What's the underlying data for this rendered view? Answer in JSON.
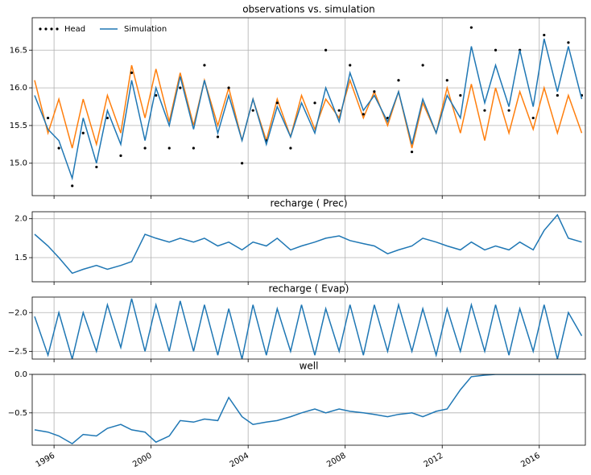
{
  "chart_data": [
    {
      "type": "line",
      "title": "observations vs. simulation",
      "legend": "upper left",
      "grid": true,
      "x": [
        1995.2,
        1995.75,
        1996.2,
        1996.75,
        1997.2,
        1997.75,
        1998.2,
        1998.75,
        1999.2,
        1999.75,
        2000.2,
        2000.75,
        2001.2,
        2001.75,
        2002.2,
        2002.75,
        2003.2,
        2003.75,
        2004.2,
        2004.75,
        2005.2,
        2005.75,
        2006.2,
        2006.75,
        2007.2,
        2007.75,
        2008.2,
        2008.75,
        2009.2,
        2009.75,
        2010.2,
        2010.75,
        2011.2,
        2011.75,
        2012.2,
        2012.75,
        2013.2,
        2013.75,
        2014.2,
        2014.75,
        2015.2,
        2015.75,
        2016.2,
        2016.75,
        2017.2,
        2017.75
      ],
      "series": [
        {
          "color": "#ff7f0e",
          "style": "line",
          "values": [
            16.1,
            15.4,
            15.85,
            15.2,
            15.85,
            15.25,
            15.9,
            15.4,
            16.3,
            15.6,
            16.25,
            15.55,
            16.2,
            15.5,
            16.1,
            15.5,
            16.0,
            15.3,
            15.85,
            15.3,
            15.85,
            15.35,
            15.9,
            15.45,
            15.85,
            15.6,
            16.1,
            15.6,
            15.95,
            15.5,
            15.95,
            15.2,
            15.8,
            15.4,
            16.0,
            15.4,
            16.05,
            15.3,
            16.0,
            15.4,
            15.95,
            15.45,
            16.0,
            15.4,
            15.9,
            15.4
          ]
        },
        {
          "name": "Head",
          "color": "#000000",
          "style": "markers",
          "values": [
            null,
            15.6,
            15.2,
            14.7,
            15.4,
            14.95,
            15.6,
            15.1,
            16.2,
            15.2,
            15.9,
            15.2,
            16.0,
            15.2,
            16.3,
            15.35,
            16.0,
            15.0,
            15.7,
            15.3,
            15.8,
            15.2,
            null,
            15.8,
            16.5,
            15.7,
            16.3,
            15.65,
            15.95,
            15.6,
            16.1,
            15.15,
            16.3,
            null,
            16.1,
            15.9,
            16.8,
            15.7,
            16.5,
            15.7,
            16.5,
            15.6,
            16.7,
            15.9,
            16.6,
            15.9
          ]
        },
        {
          "name": "Simulation",
          "color": "#1f77b4",
          "style": "line",
          "values": [
            15.9,
            15.45,
            15.3,
            14.8,
            15.6,
            15.0,
            15.7,
            15.25,
            16.1,
            15.3,
            16.0,
            15.5,
            16.15,
            15.45,
            16.1,
            15.4,
            15.9,
            15.3,
            15.85,
            15.25,
            15.75,
            15.35,
            15.8,
            15.4,
            16.0,
            15.55,
            16.2,
            15.7,
            15.9,
            15.55,
            15.95,
            15.25,
            15.85,
            15.4,
            15.9,
            15.6,
            16.55,
            15.8,
            16.3,
            15.75,
            16.5,
            15.75,
            16.65,
            15.95,
            16.55,
            15.85
          ]
        }
      ],
      "xlim": [
        1995.1,
        2017.9
      ],
      "xticks": [
        1996,
        2000,
        2004,
        2008,
        2012,
        2016
      ],
      "ylim": [
        14.57,
        16.93
      ],
      "yticks": [
        {
          "value": 15,
          "label": "15.0"
        },
        {
          "value": 15.5,
          "label": "15.5"
        },
        {
          "value": 16,
          "label": "16.0"
        },
        {
          "value": 16.5,
          "label": "16.5"
        }
      ]
    },
    {
      "type": "line",
      "title": "recharge ( Prec)",
      "grid": true,
      "x": [
        1995.2,
        1995.75,
        1996.2,
        1996.75,
        1997.2,
        1997.75,
        1998.2,
        1998.75,
        1999.2,
        1999.75,
        2000.2,
        2000.75,
        2001.2,
        2001.75,
        2002.2,
        2002.75,
        2003.2,
        2003.75,
        2004.2,
        2004.75,
        2005.2,
        2005.75,
        2006.2,
        2006.75,
        2007.2,
        2007.75,
        2008.2,
        2008.75,
        2009.2,
        2009.75,
        2010.2,
        2010.75,
        2011.2,
        2011.75,
        2012.2,
        2012.75,
        2013.2,
        2013.75,
        2014.2,
        2014.75,
        2015.2,
        2015.75,
        2016.2,
        2016.75,
        2017.2,
        2017.75
      ],
      "series": [
        {
          "color": "#1f77b4",
          "style": "line",
          "values": [
            1.8,
            1.65,
            1.5,
            1.3,
            1.35,
            1.4,
            1.35,
            1.4,
            1.45,
            1.8,
            1.75,
            1.7,
            1.75,
            1.7,
            1.75,
            1.65,
            1.7,
            1.6,
            1.7,
            1.65,
            1.75,
            1.6,
            1.65,
            1.7,
            1.75,
            1.78,
            1.72,
            1.68,
            1.65,
            1.55,
            1.6,
            1.65,
            1.75,
            1.7,
            1.65,
            1.6,
            1.7,
            1.6,
            1.65,
            1.6,
            1.7,
            1.6,
            1.85,
            2.05,
            1.75,
            1.7
          ]
        }
      ],
      "xlim": [
        1995.1,
        2017.9
      ],
      "xticks": [
        1996,
        2000,
        2004,
        2008,
        2012,
        2016
      ],
      "ylim": [
        1.19,
        2.09
      ],
      "yticks": [
        {
          "value": 1.5,
          "label": "1.5"
        },
        {
          "value": 2,
          "label": "2.0"
        }
      ]
    },
    {
      "type": "line",
      "title": "recharge ( Evap)",
      "grid": true,
      "x": [
        1995.2,
        1995.75,
        1996.2,
        1996.75,
        1997.2,
        1997.75,
        1998.2,
        1998.75,
        1999.2,
        1999.75,
        2000.2,
        2000.75,
        2001.2,
        2001.75,
        2002.2,
        2002.75,
        2003.2,
        2003.75,
        2004.2,
        2004.75,
        2005.2,
        2005.75,
        2006.2,
        2006.75,
        2007.2,
        2007.75,
        2008.2,
        2008.75,
        2009.2,
        2009.75,
        2010.2,
        2010.75,
        2011.2,
        2011.75,
        2012.2,
        2012.75,
        2013.2,
        2013.75,
        2014.2,
        2014.75,
        2015.2,
        2015.75,
        2016.2,
        2016.75,
        2017.2,
        2017.75
      ],
      "series": [
        {
          "color": "#1f77b4",
          "style": "line",
          "values": [
            -2.05,
            -2.55,
            -2.0,
            -2.6,
            -2.0,
            -2.5,
            -1.9,
            -2.45,
            -1.82,
            -2.5,
            -1.9,
            -2.5,
            -1.85,
            -2.5,
            -1.9,
            -2.55,
            -1.95,
            -2.6,
            -1.9,
            -2.55,
            -1.95,
            -2.5,
            -1.9,
            -2.55,
            -1.95,
            -2.5,
            -1.9,
            -2.55,
            -1.9,
            -2.5,
            -1.9,
            -2.5,
            -1.95,
            -2.55,
            -1.95,
            -2.5,
            -1.9,
            -2.5,
            -1.9,
            -2.55,
            -1.95,
            -2.5,
            -1.9,
            -2.6,
            -2.0,
            -2.3
          ]
        }
      ],
      "xlim": [
        1995.1,
        2017.9
      ],
      "xticks": [
        1996,
        2000,
        2004,
        2008,
        2012,
        2016
      ],
      "ylim": [
        -2.6,
        -1.8
      ],
      "yticks": [
        {
          "value": -2.5,
          "label": "−2.5"
        },
        {
          "value": -2,
          "label": "−2.0"
        }
      ]
    },
    {
      "type": "line",
      "title": "well",
      "grid": true,
      "x": [
        1995.2,
        1995.75,
        1996.2,
        1996.75,
        1997.2,
        1997.75,
        1998.2,
        1998.75,
        1999.2,
        1999.75,
        2000.2,
        2000.75,
        2001.2,
        2001.75,
        2002.2,
        2002.75,
        2003.2,
        2003.75,
        2004.2,
        2004.75,
        2005.2,
        2005.75,
        2006.2,
        2006.75,
        2007.2,
        2007.75,
        2008.2,
        2008.75,
        2009.2,
        2009.75,
        2010.2,
        2010.75,
        2011.2,
        2011.75,
        2012.2,
        2012.75,
        2013.2,
        2013.75,
        2014.2,
        2014.75,
        2015.2,
        2015.75,
        2016.2,
        2016.75,
        2017.2,
        2017.75
      ],
      "series": [
        {
          "color": "#1f77b4",
          "style": "line",
          "values": [
            -0.72,
            -0.75,
            -0.8,
            -0.9,
            -0.78,
            -0.8,
            -0.7,
            -0.65,
            -0.72,
            -0.75,
            -0.88,
            -0.8,
            -0.6,
            -0.62,
            -0.58,
            -0.6,
            -0.3,
            -0.55,
            -0.65,
            -0.62,
            -0.6,
            -0.55,
            -0.5,
            -0.45,
            -0.5,
            -0.45,
            -0.48,
            -0.5,
            -0.52,
            -0.55,
            -0.52,
            -0.5,
            -0.55,
            -0.48,
            -0.45,
            -0.2,
            -0.03,
            -0.01,
            0,
            0,
            0,
            0,
            0,
            0,
            0,
            0
          ]
        }
      ],
      "xlim": [
        1995.1,
        2017.9
      ],
      "xticks": [
        1996,
        2000,
        2004,
        2008,
        2012,
        2016
      ],
      "ylim": [
        -0.92,
        0
      ],
      "yticks": [
        {
          "value": -0.5,
          "label": "−0.5"
        },
        {
          "value": 0,
          "label": "0.0"
        }
      ]
    }
  ]
}
